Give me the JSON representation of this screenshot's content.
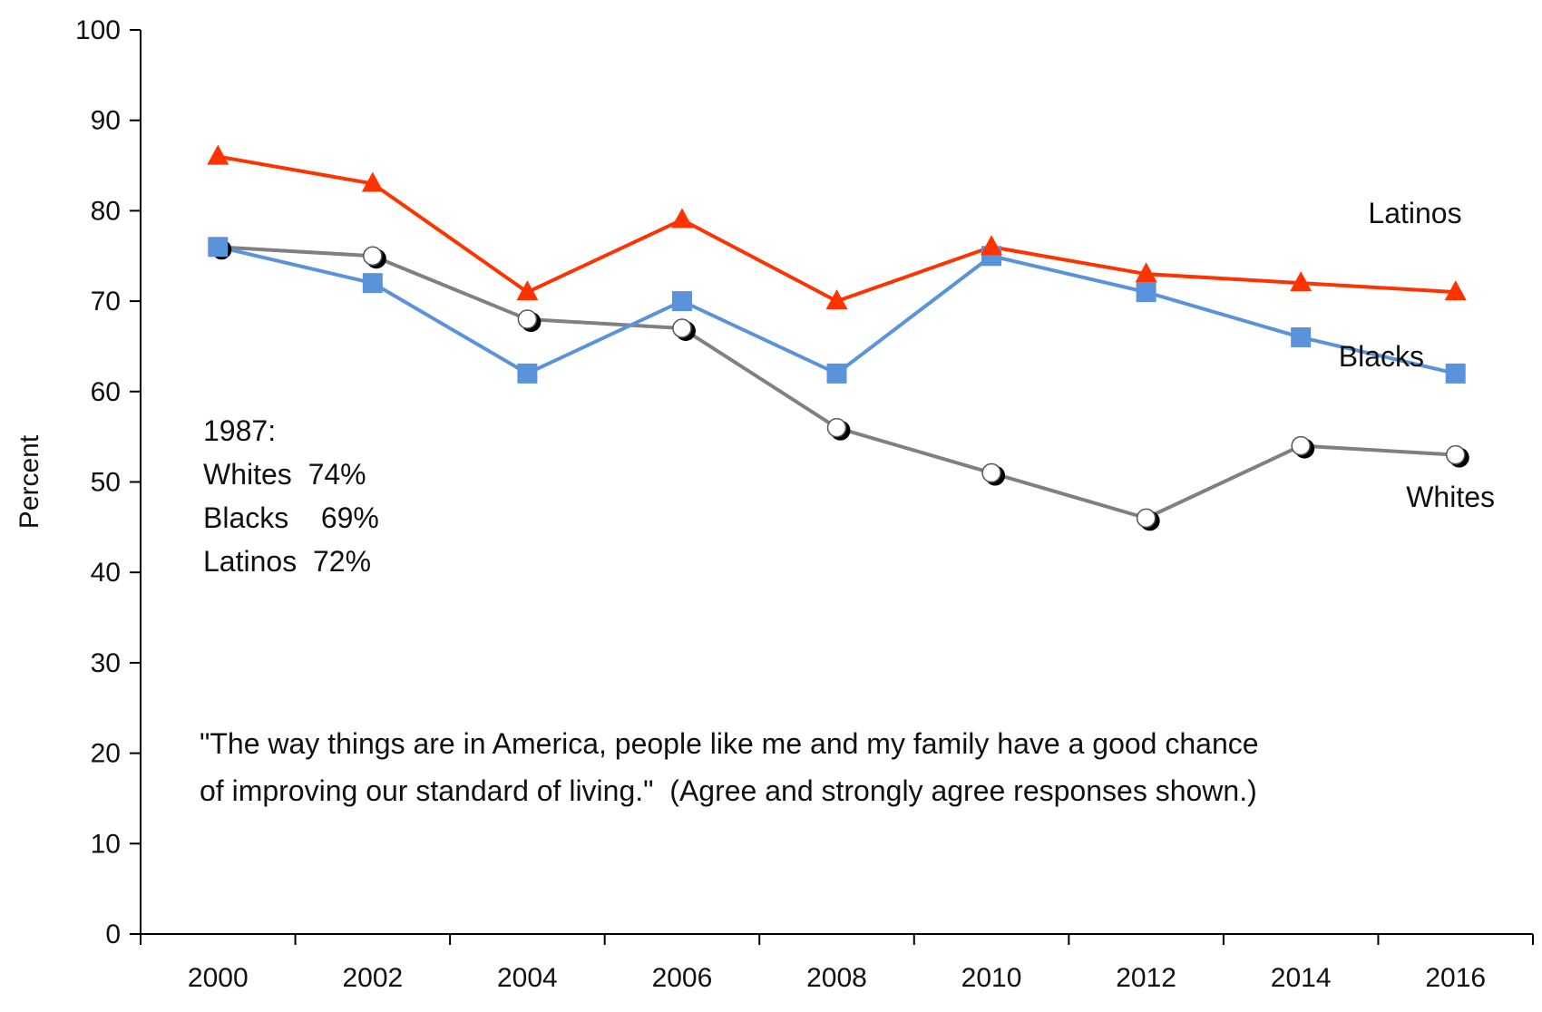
{
  "chart_data": {
    "type": "line",
    "title": "",
    "xlabel": "",
    "ylabel": "Percent",
    "x": [
      2000,
      2002,
      2004,
      2006,
      2008,
      2010,
      2012,
      2014,
      2016
    ],
    "x_ticks": [
      "2000",
      "2002",
      "2004",
      "2006",
      "2008",
      "2010",
      "2012",
      "2014",
      "2016"
    ],
    "y_ticks": [
      "0",
      "10",
      "20",
      "30",
      "40",
      "50",
      "60",
      "70",
      "80",
      "90",
      "100"
    ],
    "ylim": [
      0,
      100
    ],
    "grid": false,
    "legend": "none (series labeled directly at right end)",
    "series": [
      {
        "name": "Latinos",
        "color": "#ff3300",
        "marker": "triangle",
        "values": [
          86,
          83,
          71,
          79,
          70,
          76,
          73,
          72,
          71
        ]
      },
      {
        "name": "Blacks",
        "color": "#5a93dc",
        "marker": "square",
        "values": [
          76,
          72,
          62,
          70,
          62,
          75,
          71,
          66,
          62
        ]
      },
      {
        "name": "Whites",
        "color": "#808080",
        "marker": "circle",
        "values": [
          76,
          75,
          68,
          67,
          56,
          51,
          46,
          54,
          53
        ]
      }
    ],
    "annotations": {
      "baseline_lines": [
        "1987:",
        "Whites  74%",
        "Blacks    69%",
        "Latinos  72%"
      ],
      "quote_lines": [
        "\"The way things are in America, people like me and my family have a good chance",
        "of improving our standard of living.\"  (Agree and strongly agree responses shown.)"
      ]
    }
  }
}
